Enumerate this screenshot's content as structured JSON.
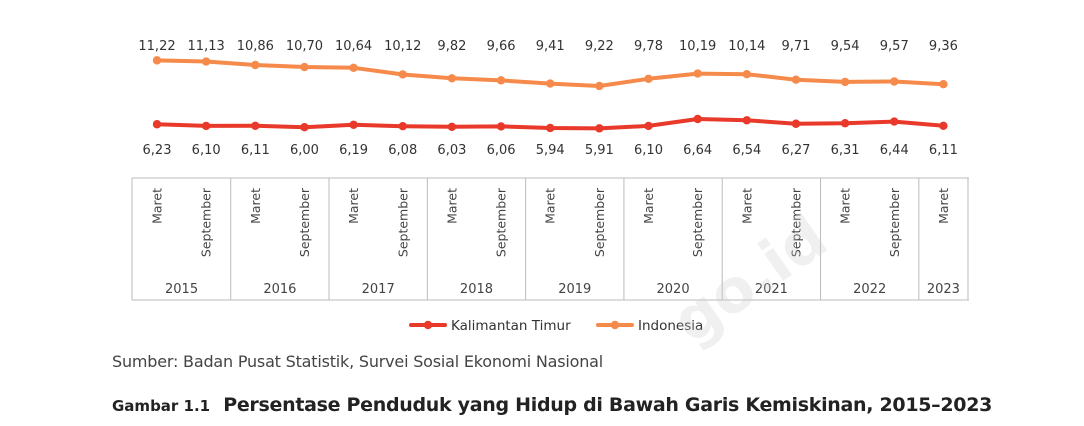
{
  "chart_data": {
    "type": "line",
    "x": [
      "Maret",
      "September",
      "Maret",
      "September",
      "Maret",
      "September",
      "Maret",
      "September",
      "Maret",
      "September",
      "Maret",
      "September",
      "Maret",
      "September",
      "Maret",
      "September",
      "Maret"
    ],
    "years": [
      "2015",
      "2016",
      "2017",
      "2018",
      "2019",
      "2020",
      "2021",
      "2022",
      "2023"
    ],
    "series": [
      {
        "name": "Kalimantan Timur",
        "color": "#e8392a",
        "values": [
          6.23,
          6.1,
          6.11,
          6.0,
          6.19,
          6.08,
          6.03,
          6.06,
          5.94,
          5.91,
          6.1,
          6.64,
          6.54,
          6.27,
          6.31,
          6.44,
          6.11
        ],
        "labels": [
          "6,23",
          "6,10",
          "6,11",
          "6,00",
          "6,19",
          "6,08",
          "6,03",
          "6,06",
          "5,94",
          "5,91",
          "6,10",
          "6,64",
          "6,54",
          "6,27",
          "6,31",
          "6,44",
          "6,11"
        ]
      },
      {
        "name": "Indonesia",
        "color": "#f58a4b",
        "values": [
          11.22,
          11.13,
          10.86,
          10.7,
          10.64,
          10.12,
          9.82,
          9.66,
          9.41,
          9.22,
          9.78,
          10.19,
          10.14,
          9.71,
          9.54,
          9.57,
          9.36
        ],
        "labels": [
          "11,22",
          "11,13",
          "10,86",
          "10,70",
          "10,64",
          "10,12",
          "9,82",
          "9,66",
          "9,41",
          "9,22",
          "9,78",
          "10,19",
          "10,14",
          "9,71",
          "9,54",
          "9,57",
          "9,36"
        ]
      }
    ],
    "legend_position": "bottom-center",
    "grid": false
  },
  "source_text": "Sumber: Badan Pusat Statistik, Survei Sosial Ekonomi Nasional",
  "caption": {
    "number": "Gambar 1.1",
    "title": "Persentase Penduduk yang Hidup di Bawah Garis Kemiskinan, 2015–2023"
  },
  "watermark": "go.id"
}
